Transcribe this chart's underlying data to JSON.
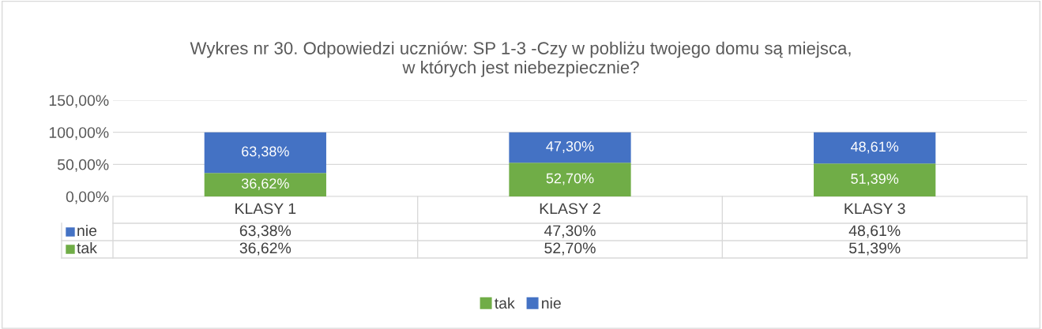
{
  "chart_data": {
    "type": "bar",
    "stacked": true,
    "title": "Wykres nr 30. Odpowiedzi uczniów: SP 1-3 -Czy w pobliżu twojego domu są miejsca,\nw których jest niebezpiecznie?",
    "categories": [
      "KLASY 1",
      "KLASY 2",
      "KLASY 3"
    ],
    "series": [
      {
        "name": "tak",
        "color": "#70ad47",
        "values": [
          36.62,
          52.7,
          51.39
        ],
        "value_labels": [
          "36,62%",
          "52,70%",
          "51,39%"
        ]
      },
      {
        "name": "nie",
        "color": "#4472c4",
        "values": [
          63.38,
          47.3,
          48.61
        ],
        "value_labels": [
          "63,38%",
          "47,30%",
          "48,61%"
        ]
      }
    ],
    "ylim": [
      0,
      150
    ],
    "yticks": [
      {
        "value": 0,
        "label": "0,00%"
      },
      {
        "value": 50,
        "label": "50,00%"
      },
      {
        "value": 100,
        "label": "100,00%"
      },
      {
        "value": 150,
        "label": "150,00%"
      }
    ],
    "grid": "y",
    "legend": "bottom"
  }
}
